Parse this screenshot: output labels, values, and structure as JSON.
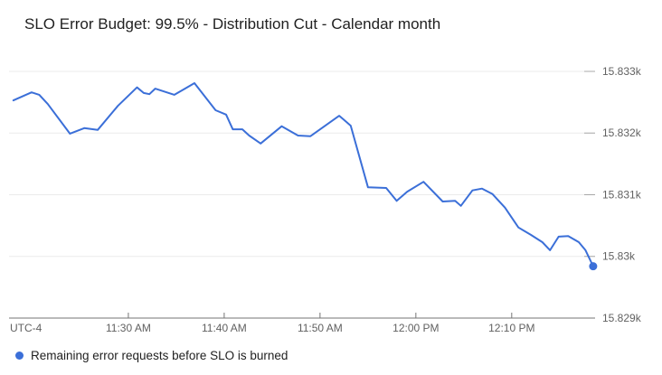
{
  "chart_data": {
    "type": "line",
    "title": "SLO Error Budget: 99.5% - Distribution Cut - Calendar month",
    "timezone_label": "UTC-4",
    "xlabel": "",
    "ylabel": "",
    "grid": true,
    "legend_position": "bottom",
    "x_unit": "minutes relative to 11:30 AM",
    "xlim_minutes": [
      -12.45,
      48.7
    ],
    "ylim": [
      15829.0,
      15833.205
    ],
    "x_ticks": [
      {
        "t": 0,
        "label": "11:30 AM"
      },
      {
        "t": 10,
        "label": "11:40 AM"
      },
      {
        "t": 20,
        "label": "11:50 AM"
      },
      {
        "t": 30,
        "label": "12:00 PM"
      },
      {
        "t": 40,
        "label": "12:10 PM"
      }
    ],
    "y_ticks": [
      {
        "value": 15833,
        "label": "15.833k"
      },
      {
        "value": 15832,
        "label": "15.832k"
      },
      {
        "value": 15831,
        "label": "15.831k"
      },
      {
        "value": 15830,
        "label": "15.83k"
      },
      {
        "value": 15829,
        "label": "15.829k"
      }
    ],
    "series": [
      {
        "name": "Remaining error requests before SLO is burned",
        "color": "#3b6fd8",
        "end_dot": true,
        "points": [
          [
            -12.0,
            15832.53
          ],
          [
            -10.1,
            15832.66
          ],
          [
            -9.3,
            15832.62
          ],
          [
            -8.4,
            15832.47
          ],
          [
            -6.1,
            15831.99
          ],
          [
            -4.6,
            15832.08
          ],
          [
            -3.2,
            15832.05
          ],
          [
            -1.1,
            15832.44
          ],
          [
            0.9,
            15832.74
          ],
          [
            1.6,
            15832.65
          ],
          [
            2.2,
            15832.63
          ],
          [
            2.8,
            15832.72
          ],
          [
            4.8,
            15832.62
          ],
          [
            5.9,
            15832.72
          ],
          [
            6.9,
            15832.81
          ],
          [
            9.1,
            15832.37
          ],
          [
            10.2,
            15832.3
          ],
          [
            10.9,
            15832.06
          ],
          [
            11.9,
            15832.06
          ],
          [
            12.6,
            15831.96
          ],
          [
            13.8,
            15831.83
          ],
          [
            16.0,
            15832.11
          ],
          [
            17.7,
            15831.96
          ],
          [
            19.0,
            15831.95
          ],
          [
            22.0,
            15832.28
          ],
          [
            23.2,
            15832.12
          ],
          [
            25.0,
            15831.12
          ],
          [
            26.9,
            15831.11
          ],
          [
            28.0,
            15830.9
          ],
          [
            29.1,
            15831.05
          ],
          [
            30.8,
            15831.21
          ],
          [
            32.8,
            15830.89
          ],
          [
            34.1,
            15830.9
          ],
          [
            34.7,
            15830.82
          ],
          [
            35.9,
            15831.07
          ],
          [
            36.9,
            15831.1
          ],
          [
            38.0,
            15831.01
          ],
          [
            39.3,
            15830.79
          ],
          [
            40.7,
            15830.47
          ],
          [
            42.0,
            15830.35
          ],
          [
            43.2,
            15830.23
          ],
          [
            44.0,
            15830.1
          ],
          [
            44.9,
            15830.32
          ],
          [
            45.9,
            15830.33
          ],
          [
            47.0,
            15830.23
          ],
          [
            47.7,
            15830.1
          ],
          [
            48.5,
            15829.84
          ]
        ]
      }
    ]
  },
  "colors": {
    "background": "#ffffff",
    "series_blue": "#3b6fd8",
    "gridline": "#ebebeb",
    "axis_line": "#757575",
    "right_tick": "#a8a8a8",
    "tick_label": "#616161",
    "title_text": "#212121"
  }
}
